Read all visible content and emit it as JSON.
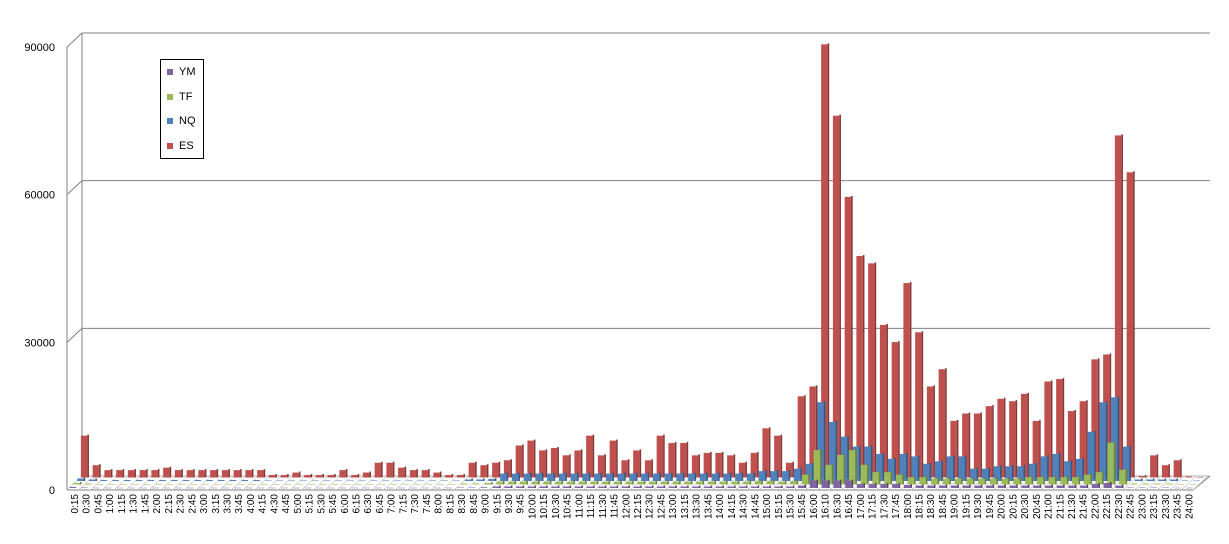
{
  "chart_data": {
    "type": "bar",
    "title": "",
    "xlabel": "",
    "ylabel": "",
    "ylim": [
      0,
      90000
    ],
    "yticks": [
      "0",
      "30000",
      "60000",
      "90000"
    ],
    "grid": true,
    "legend_position": "top-left",
    "categories": [
      "0:15",
      "0:30",
      "0:45",
      "1:00",
      "1:15",
      "1:30",
      "1:45",
      "2:00",
      "2:15",
      "2:30",
      "2:45",
      "3:00",
      "3:15",
      "3:30",
      "3:45",
      "4:00",
      "4:15",
      "4:30",
      "4:45",
      "5:00",
      "5:15",
      "5:30",
      "5:45",
      "6:00",
      "6:15",
      "6:30",
      "6:45",
      "7:00",
      "7:15",
      "7:30",
      "7:45",
      "8:00",
      "8:15",
      "8:30",
      "8:45",
      "9:00",
      "9:15",
      "9:30",
      "9:45",
      "10:00",
      "10:15",
      "10:30",
      "10:45",
      "11:00",
      "11:15",
      "11:30",
      "11:45",
      "12:00",
      "12:15",
      "12:30",
      "12:45",
      "13:00",
      "13:15",
      "13:30",
      "13:45",
      "14:00",
      "14:15",
      "14:30",
      "14:45",
      "15:00",
      "15:15",
      "15:30",
      "15:45",
      "16:00",
      "16:10",
      "16:30",
      "16:45",
      "17:00",
      "17:15",
      "17:30",
      "17:45",
      "18:00",
      "18:15",
      "18:30",
      "18:45",
      "19:00",
      "19:15",
      "19:30",
      "19:45",
      "20:00",
      "20:15",
      "20:30",
      "20:45",
      "21:00",
      "21:15",
      "21:30",
      "21:45",
      "22:00",
      "22:15",
      "22:30",
      "22:45",
      "23:00",
      "23:15",
      "23:30",
      "23:45",
      "24:00"
    ],
    "xtick_labels": [
      "0:15",
      "0:30",
      "0:45",
      "1:00",
      "1:15",
      "1:30",
      "1:45",
      "2:00",
      "2:15",
      "2:30",
      "2:45",
      "3:00",
      "3:15",
      "3:30",
      "3:45",
      "4:00",
      "4:15",
      "4:30",
      "4:45",
      "5:00",
      "5:15",
      "5:30",
      "5:45",
      "6:00",
      "6:15",
      "6:30",
      "6:45",
      "7:00",
      "7:15",
      "7:30",
      "7:45",
      "8:00",
      "8:15",
      "8:30",
      "8:45",
      "9:00",
      "9:15",
      "9:30",
      "9:45",
      "10:00",
      "10:15",
      "10:30",
      "10:45",
      "11:00",
      "11:15",
      "11:30",
      "11:45",
      "12:00",
      "12:15",
      "12:30",
      "12:45",
      "13:00",
      "13:15",
      "13:30",
      "13:45",
      "14:00",
      "14:15",
      "14:30",
      "14:45",
      "15:00",
      "15:15",
      "15:30",
      "15:45",
      "16:00",
      "16:10",
      "16:30",
      "16:45",
      "17:00",
      "17:15",
      "17:30",
      "17:45",
      "18:00",
      "18:15",
      "18:30",
      "18:45",
      "19:00",
      "19:15",
      "19:30",
      "19:45",
      "20:00",
      "20:15",
      "20:30",
      "20:45",
      "21:00",
      "21:15",
      "21:30",
      "21:45",
      "22:00",
      "22:15",
      "22:30",
      "22:45",
      "23:00",
      "23:15",
      "23:30",
      "23:45",
      "24:00"
    ],
    "series": [
      {
        "name": "YM",
        "color": "#8064A2",
        "values": [
          200,
          100,
          50,
          50,
          50,
          50,
          50,
          50,
          50,
          50,
          50,
          50,
          50,
          50,
          50,
          50,
          50,
          50,
          50,
          50,
          50,
          50,
          50,
          50,
          50,
          50,
          50,
          50,
          50,
          50,
          50,
          50,
          50,
          100,
          100,
          150,
          300,
          300,
          300,
          300,
          300,
          300,
          300,
          300,
          300,
          300,
          300,
          300,
          300,
          300,
          300,
          300,
          300,
          300,
          300,
          300,
          300,
          300,
          300,
          300,
          300,
          300,
          500,
          1500,
          1500,
          1500,
          1500,
          800,
          800,
          800,
          800,
          600,
          500,
          500,
          500,
          500,
          500,
          500,
          500,
          500,
          500,
          500,
          500,
          500,
          500,
          500,
          500,
          800,
          1000,
          500,
          100,
          100,
          100,
          100,
          50,
          50
        ]
      },
      {
        "name": "TF",
        "color": "#9BBB59",
        "values": [
          300,
          200,
          100,
          100,
          100,
          100,
          100,
          100,
          100,
          100,
          100,
          100,
          100,
          100,
          100,
          100,
          100,
          100,
          100,
          100,
          100,
          100,
          100,
          100,
          100,
          100,
          100,
          100,
          100,
          100,
          100,
          100,
          100,
          200,
          200,
          300,
          600,
          600,
          600,
          600,
          600,
          600,
          600,
          600,
          600,
          600,
          600,
          600,
          600,
          600,
          600,
          600,
          600,
          600,
          600,
          600,
          600,
          600,
          700,
          700,
          600,
          700,
          2000,
          7000,
          4000,
          6000,
          7000,
          4000,
          2500,
          2500,
          2000,
          1500,
          1500,
          1200,
          1200,
          1200,
          1200,
          1200,
          1200,
          1200,
          1200,
          1500,
          1500,
          1500,
          1500,
          1500,
          2000,
          2500,
          8500,
          3000,
          200,
          200,
          200,
          200,
          100,
          100
        ]
      },
      {
        "name": "NQ",
        "color": "#4F81BD",
        "values": [
          500,
          300,
          200,
          200,
          200,
          200,
          200,
          200,
          200,
          200,
          200,
          200,
          200,
          200,
          200,
          200,
          100,
          100,
          100,
          100,
          100,
          100,
          100,
          100,
          100,
          100,
          100,
          100,
          100,
          100,
          100,
          100,
          100,
          300,
          300,
          400,
          1500,
          1500,
          1500,
          1500,
          1500,
          1500,
          1500,
          1500,
          1500,
          1500,
          1500,
          1500,
          1500,
          1500,
          1500,
          1500,
          1500,
          1500,
          1500,
          1500,
          1500,
          1500,
          2000,
          2000,
          2000,
          2500,
          3500,
          16000,
          12000,
          9000,
          7000,
          7000,
          5500,
          4500,
          5500,
          5000,
          3500,
          4000,
          5000,
          5000,
          2500,
          2500,
          3000,
          3000,
          3000,
          3500,
          5000,
          5500,
          4000,
          4500,
          10000,
          16000,
          17000,
          7000,
          300,
          300,
          300,
          300,
          100,
          100
        ]
      },
      {
        "name": "ES",
        "color": "#C0504D",
        "values": [
          8500,
          2500,
          1500,
          1500,
          1500,
          1500,
          1500,
          2000,
          1500,
          1500,
          1500,
          1500,
          1500,
          1500,
          1500,
          1500,
          500,
          500,
          1000,
          500,
          500,
          500,
          1500,
          500,
          1000,
          3000,
          3000,
          2000,
          1500,
          1500,
          1000,
          500,
          500,
          3000,
          2500,
          3000,
          3500,
          6500,
          7500,
          5500,
          6000,
          4500,
          5500,
          8500,
          4500,
          7500,
          3500,
          5500,
          3500,
          8500,
          7000,
          7000,
          4500,
          5000,
          5000,
          4500,
          3000,
          5000,
          10000,
          8500,
          3000,
          16500,
          18500,
          88000,
          73500,
          57000,
          45000,
          43500,
          31000,
          27500,
          39500,
          29500,
          18500,
          22000,
          11500,
          13000,
          13000,
          14500,
          16000,
          15500,
          17000,
          11500,
          19500,
          20000,
          13500,
          15500,
          24000,
          25000,
          69500,
          62000,
          300,
          4500,
          2500,
          3500,
          200,
          100
        ]
      }
    ]
  }
}
